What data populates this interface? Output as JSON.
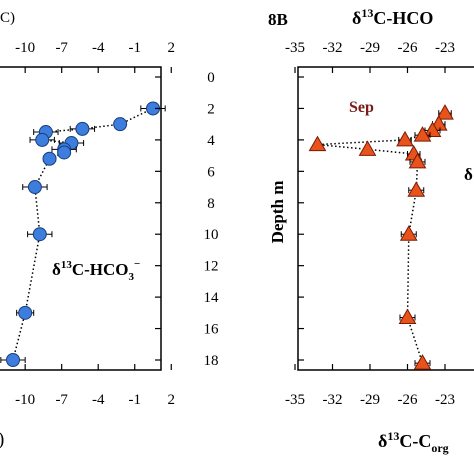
{
  "chart_data": [
    {
      "type": "scatter",
      "panel_label": "",
      "title": "",
      "top_axis": {
        "label": "C)",
        "ticks": [
          "-10",
          "-7",
          "-4",
          "-1",
          "2"
        ]
      },
      "bottom_axis": {
        "label": ")",
        "ticks": [
          "-10",
          "-7",
          "-4",
          "-1",
          "2"
        ]
      },
      "in_plot_label": {
        "main": "δ",
        "sup": "13",
        "rest": "C-HCO",
        "sub": "3",
        "sup2": "−"
      },
      "xlim": [
        -13,
        2
      ],
      "ylim": [
        0,
        18
      ],
      "y_inverted": true,
      "marker": {
        "shape": "circle",
        "color": "#3c7dde",
        "edge": "#1a3d7a"
      },
      "line_style": "dotted",
      "points": [
        {
          "x": 0.5,
          "y": 2.0,
          "xerr": 1.0
        },
        {
          "x": -2.2,
          "y": 3.0,
          "xerr": 0.0
        },
        {
          "x": -5.3,
          "y": 3.3,
          "xerr": 1.0
        },
        {
          "x": -8.3,
          "y": 3.5,
          "xerr": 1.0
        },
        {
          "x": -8.6,
          "y": 4.0,
          "xerr": 1.0
        },
        {
          "x": -6.2,
          "y": 4.2,
          "xerr": 1.0
        },
        {
          "x": -6.8,
          "y": 4.6,
          "xerr": 1.0
        },
        {
          "x": -6.8,
          "y": 4.8,
          "xerr": 0.0
        },
        {
          "x": -8.0,
          "y": 5.2,
          "xerr": 0.5
        },
        {
          "x": -9.2,
          "y": 7.0,
          "xerr": 1.0
        },
        {
          "x": -8.8,
          "y": 10.0,
          "xerr": 1.0
        },
        {
          "x": -10.0,
          "y": 15.0,
          "xerr": 0.7
        },
        {
          "x": -11.0,
          "y": 18.0,
          "xerr": 1.0
        }
      ]
    },
    {
      "type": "scatter",
      "panel_label": "8B",
      "top_axis": {
        "label": {
          "main": "δ",
          "sup": "13",
          "rest": "C-HCO"
        },
        "ticks": [
          "-35",
          "-32",
          "-29",
          "-26",
          "-23"
        ]
      },
      "bottom_axis": {
        "label": {
          "main": "δ",
          "sup": "13",
          "rest": "C-C",
          "sub": "org"
        },
        "ticks": [
          "-35",
          "-32",
          "-29",
          "-26",
          "-23"
        ]
      },
      "y_axis": {
        "label": "Depth  m",
        "ticks": [
          "0",
          "2",
          "4",
          "6",
          "8",
          "10",
          "12",
          "14",
          "16",
          "18"
        ]
      },
      "annotations": [
        {
          "text": "Sep",
          "color": "#7a1a1a"
        },
        {
          "text": "δ",
          "color": "#000000"
        }
      ],
      "xlim": [
        -35,
        -20
      ],
      "ylim": [
        0,
        18
      ],
      "y_inverted": true,
      "marker": {
        "shape": "triangle",
        "color": "#e8531c",
        "edge": "#7a1a05"
      },
      "line_style": "dotted",
      "points": [
        {
          "x": -23.0,
          "y": 2.3,
          "xerr": 0.5
        },
        {
          "x": -23.5,
          "y": 3.0,
          "xerr": 0.5
        },
        {
          "x": -24.0,
          "y": 3.4,
          "xerr": 0.6
        },
        {
          "x": -24.8,
          "y": 3.7,
          "xerr": 0.6
        },
        {
          "x": -26.2,
          "y": 4.0,
          "xerr": 0.5
        },
        {
          "x": -33.2,
          "y": 4.3,
          "xerr": 0.0
        },
        {
          "x": -29.2,
          "y": 4.6,
          "xerr": 0.0
        },
        {
          "x": -25.5,
          "y": 4.9,
          "xerr": 0.5
        },
        {
          "x": -25.2,
          "y": 5.4,
          "xerr": 0.6
        },
        {
          "x": -25.3,
          "y": 7.2,
          "xerr": 0.6
        },
        {
          "x": -25.9,
          "y": 10.0,
          "xerr": 0.6
        },
        {
          "x": -26.0,
          "y": 15.3,
          "xerr": 0.6
        },
        {
          "x": -24.8,
          "y": 18.2,
          "xerr": 0.6
        }
      ]
    }
  ]
}
